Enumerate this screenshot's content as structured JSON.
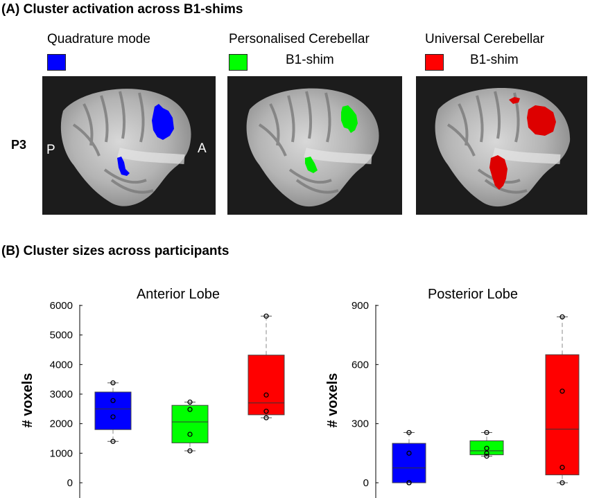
{
  "panel_a": {
    "title": "(A) Cluster activation across B1-shims",
    "participant": "P3",
    "posterior_label": "P",
    "anterior_label": "A",
    "legend": [
      {
        "line1": "Quadrature mode",
        "line2": "",
        "color": "#0000ff"
      },
      {
        "line1": "Personalised Cerebellar",
        "line2": "B1-shim",
        "color": "#00ff00"
      },
      {
        "line1": "Universal Cerebellar",
        "line2": "B1-shim",
        "color": "#ff0000"
      }
    ]
  },
  "panel_b": {
    "title": "(B) Cluster sizes across participants"
  },
  "chart_data": [
    {
      "type": "box",
      "title": "Anterior Lobe",
      "xlabel": "",
      "ylabel": "# voxels",
      "ylim": [
        0,
        6000
      ],
      "yticks": [
        "0",
        "1000",
        "2000",
        "3000",
        "4000",
        "5000",
        "6000"
      ],
      "series": [
        {
          "color": "#0000ff",
          "q1": 1800,
          "median": 2500,
          "q3": 3070,
          "whisker_low": 1400,
          "whisker_high": 3380,
          "points": [
            1400,
            2230,
            2780,
            3380
          ]
        },
        {
          "color": "#00ff00",
          "q1": 1350,
          "median": 2060,
          "q3": 2620,
          "whisker_low": 1080,
          "whisker_high": 2730,
          "points": [
            1080,
            1640,
            2480,
            2730
          ]
        },
        {
          "color": "#ff0000",
          "q1": 2300,
          "median": 2700,
          "q3": 4320,
          "whisker_low": 2200,
          "whisker_high": 5640,
          "points": [
            2200,
            2420,
            2970,
            5640
          ]
        }
      ]
    },
    {
      "type": "box",
      "title": "Posterior Lobe",
      "xlabel": "",
      "ylabel": "# voxels",
      "ylim": [
        0,
        900
      ],
      "yticks": [
        "0",
        "300",
        "600",
        "900"
      ],
      "series": [
        {
          "color": "#0000ff",
          "q1": 0,
          "median": 75,
          "q3": 200,
          "whisker_low": 0,
          "whisker_high": 255,
          "points": [
            0,
            0,
            150,
            255
          ]
        },
        {
          "color": "#00ff00",
          "q1": 142,
          "median": 162,
          "q3": 213,
          "whisker_low": 135,
          "whisker_high": 255,
          "points": [
            135,
            150,
            175,
            255
          ]
        },
        {
          "color": "#ff0000",
          "q1": 40,
          "median": 272,
          "q3": 650,
          "whisker_low": 0,
          "whisker_high": 842,
          "points": [
            0,
            78,
            465,
            842
          ]
        }
      ]
    }
  ]
}
